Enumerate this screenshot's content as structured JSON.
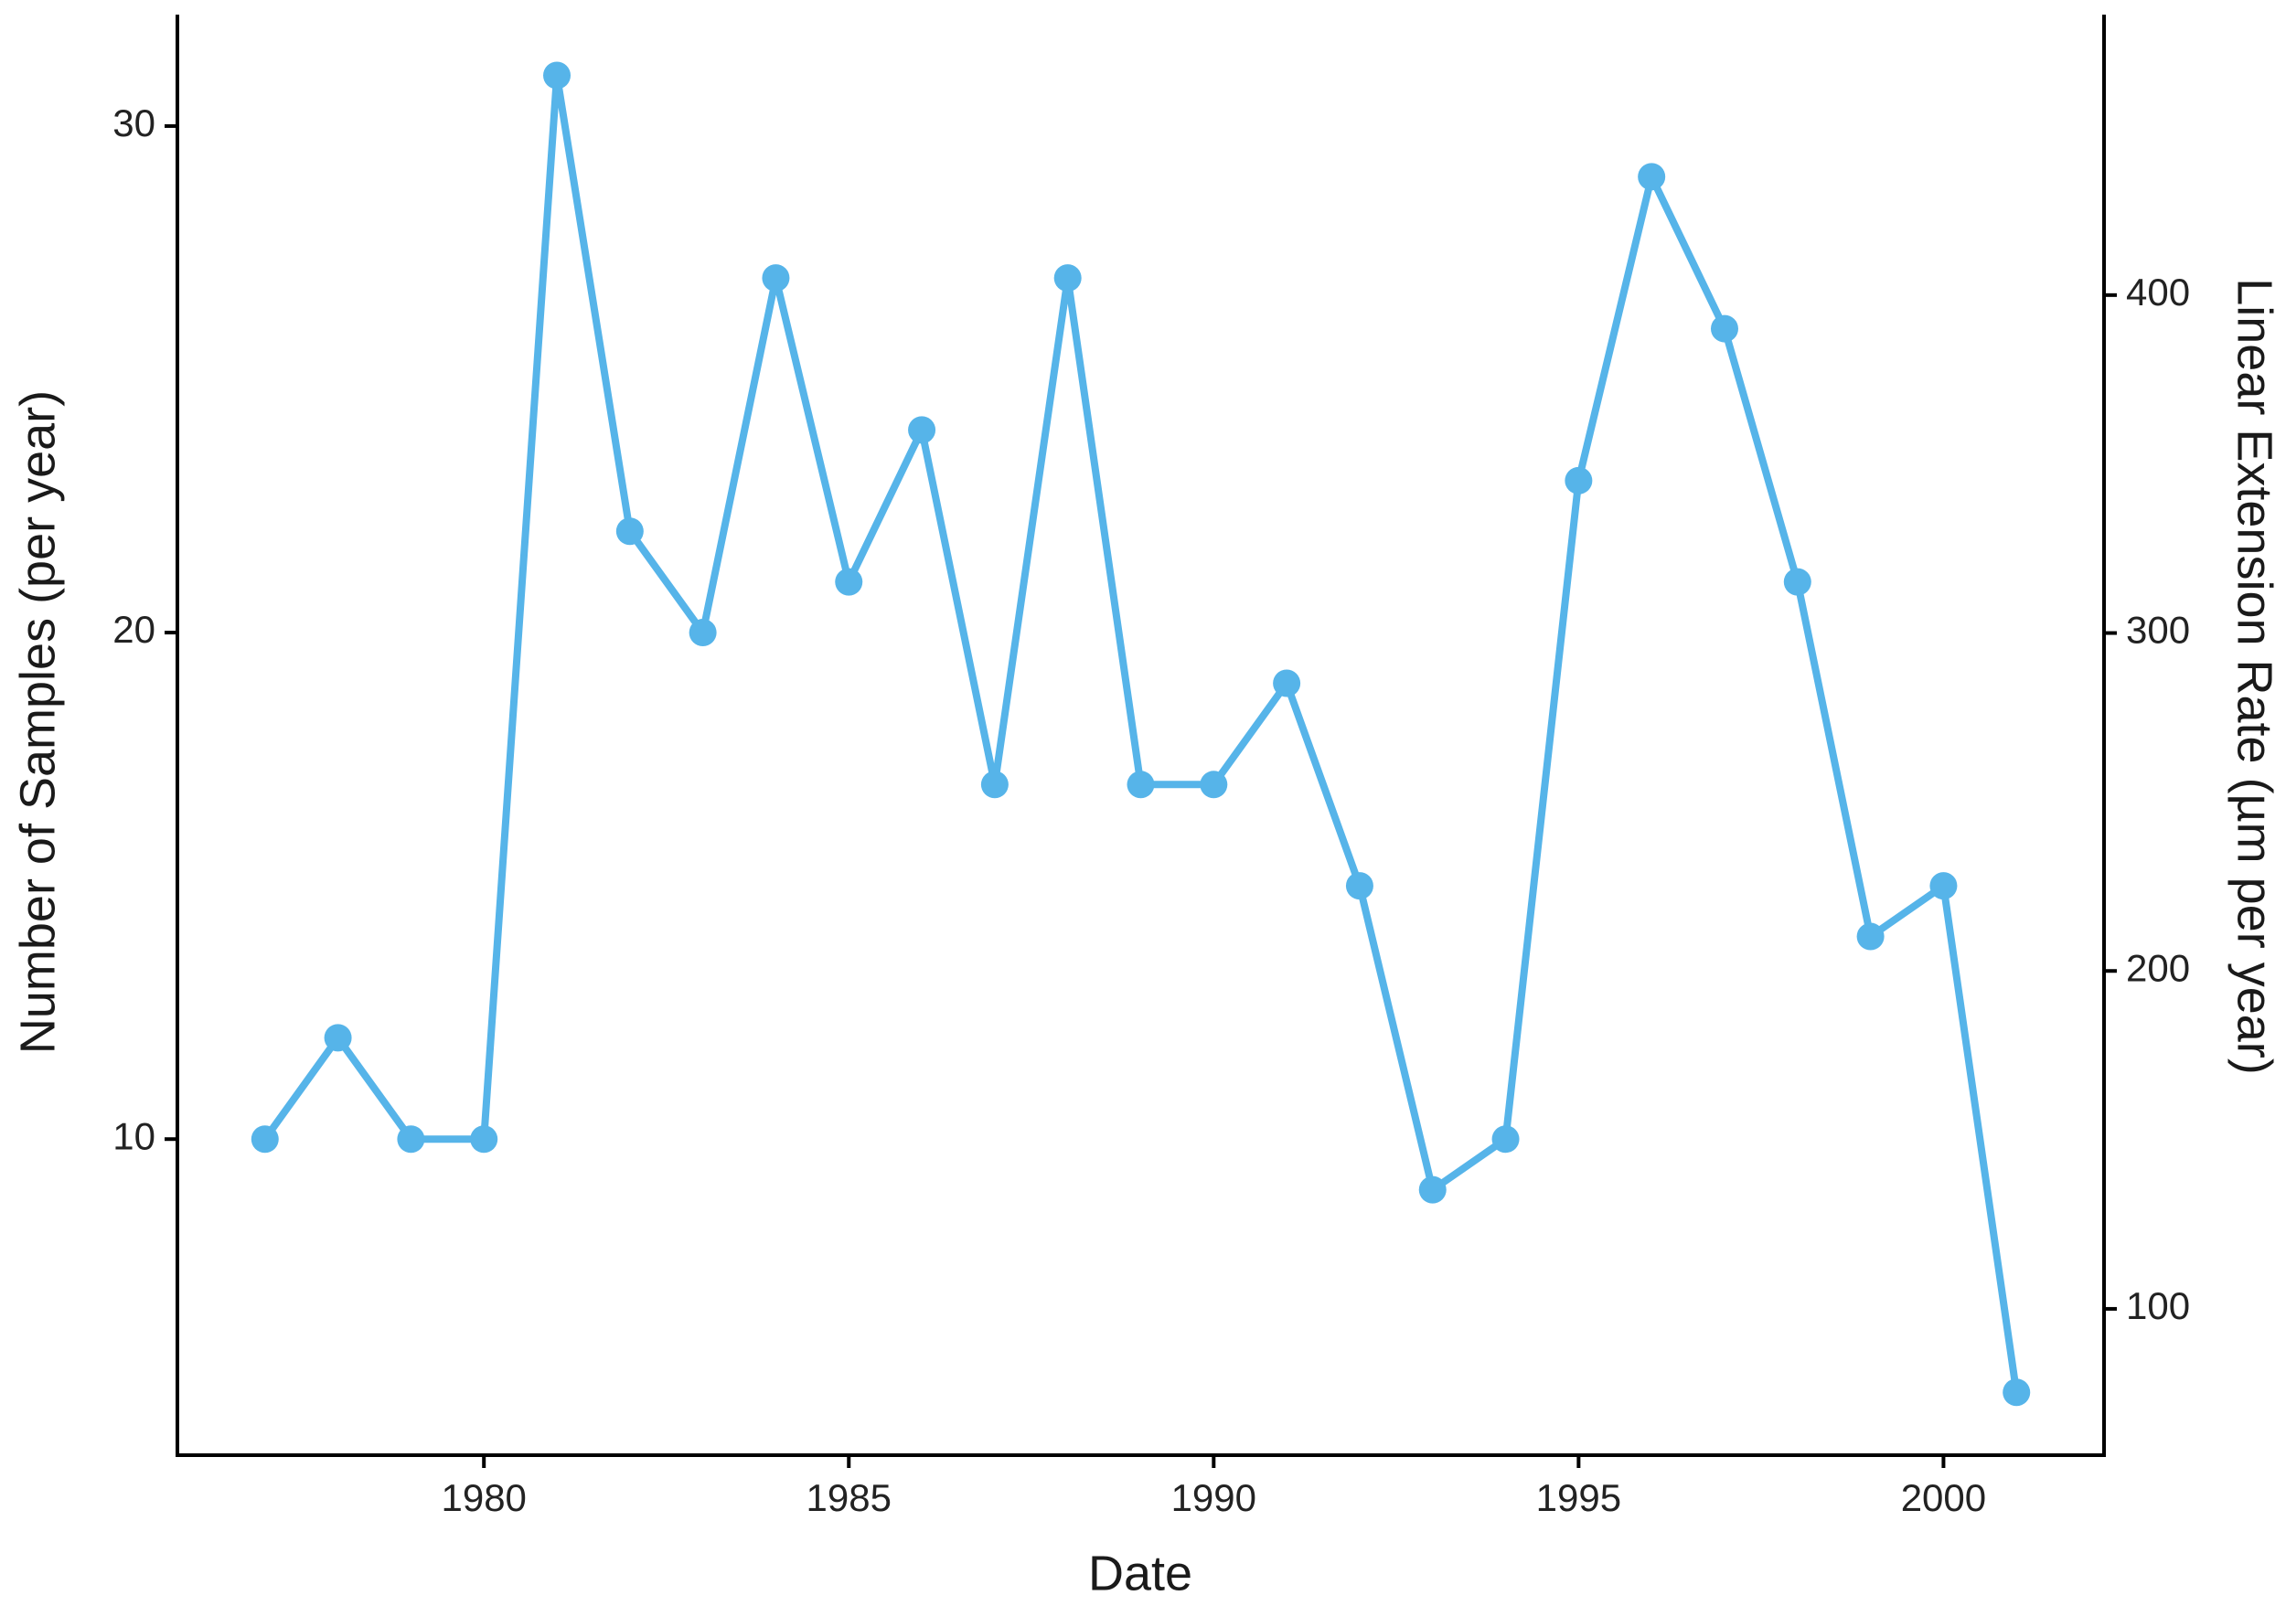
{
  "chart_data": {
    "type": "line",
    "x_label": "Date",
    "y_label": "Number of Samples (per year)",
    "y2_label": "Linear Extension Rate (µm per year)",
    "x": [
      1977,
      1978,
      1979,
      1980,
      1981,
      1982,
      1983,
      1984,
      1985,
      1986,
      1987,
      1988,
      1989,
      1990,
      1991,
      1992,
      1993,
      1994,
      1995,
      1996,
      1997,
      1998,
      1999,
      2000,
      2001
    ],
    "series": [
      {
        "color": "#56b4e9",
        "values": [
          10,
          12,
          10,
          10,
          31,
          22,
          20,
          27,
          21,
          24,
          17,
          27,
          17,
          17,
          19,
          15,
          9,
          10,
          23,
          29,
          26,
          21,
          14,
          15,
          5
        ]
      }
    ],
    "xlim": [
      1975.8,
      2002.2
    ],
    "xticks": [
      1980,
      1985,
      1990,
      1995,
      2000
    ],
    "ylim": [
      3.76,
      32.2
    ],
    "yticks": [
      10,
      20,
      30
    ],
    "y2lim": [
      56.7,
      483
    ],
    "y2ticks": [
      100,
      200,
      300,
      400
    ],
    "grid": false
  }
}
